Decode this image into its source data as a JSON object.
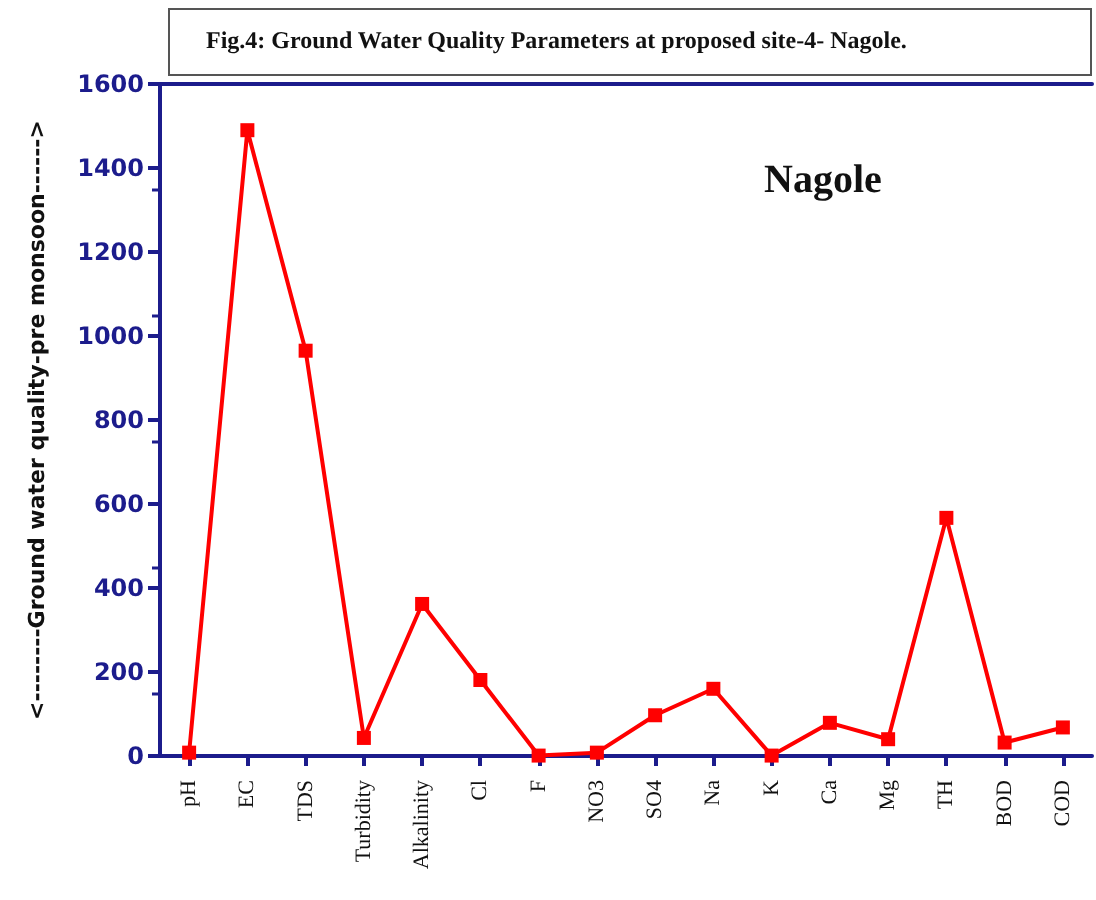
{
  "chart_data": {
    "type": "line",
    "title": "Fig.4: Ground Water Quality Parameters at proposed site-4- Nagole.",
    "ylabel": "<--------Ground water quality-pre monsoon------>",
    "annotations": [
      "Nagole"
    ],
    "categories": [
      "pH",
      "EC",
      "TDS",
      "Turbidity",
      "Alkalinity",
      "Cl",
      "F",
      "NO3",
      "SO4",
      "Na",
      "K",
      "Ca",
      "Mg",
      "TH",
      "BOD",
      "COD"
    ],
    "series": [
      {
        "color": "#ff0000",
        "values": [
          8,
          1490,
          965,
          43,
          362,
          181,
          1,
          8,
          97,
          160,
          1,
          79,
          40,
          567,
          32,
          68
        ]
      }
    ],
    "ylim": [
      0,
      1600
    ],
    "yticks": [
      0,
      200,
      400,
      600,
      800,
      1000,
      1200,
      1400,
      1600
    ],
    "grid": false,
    "marker": "square",
    "line_style": "solid"
  }
}
